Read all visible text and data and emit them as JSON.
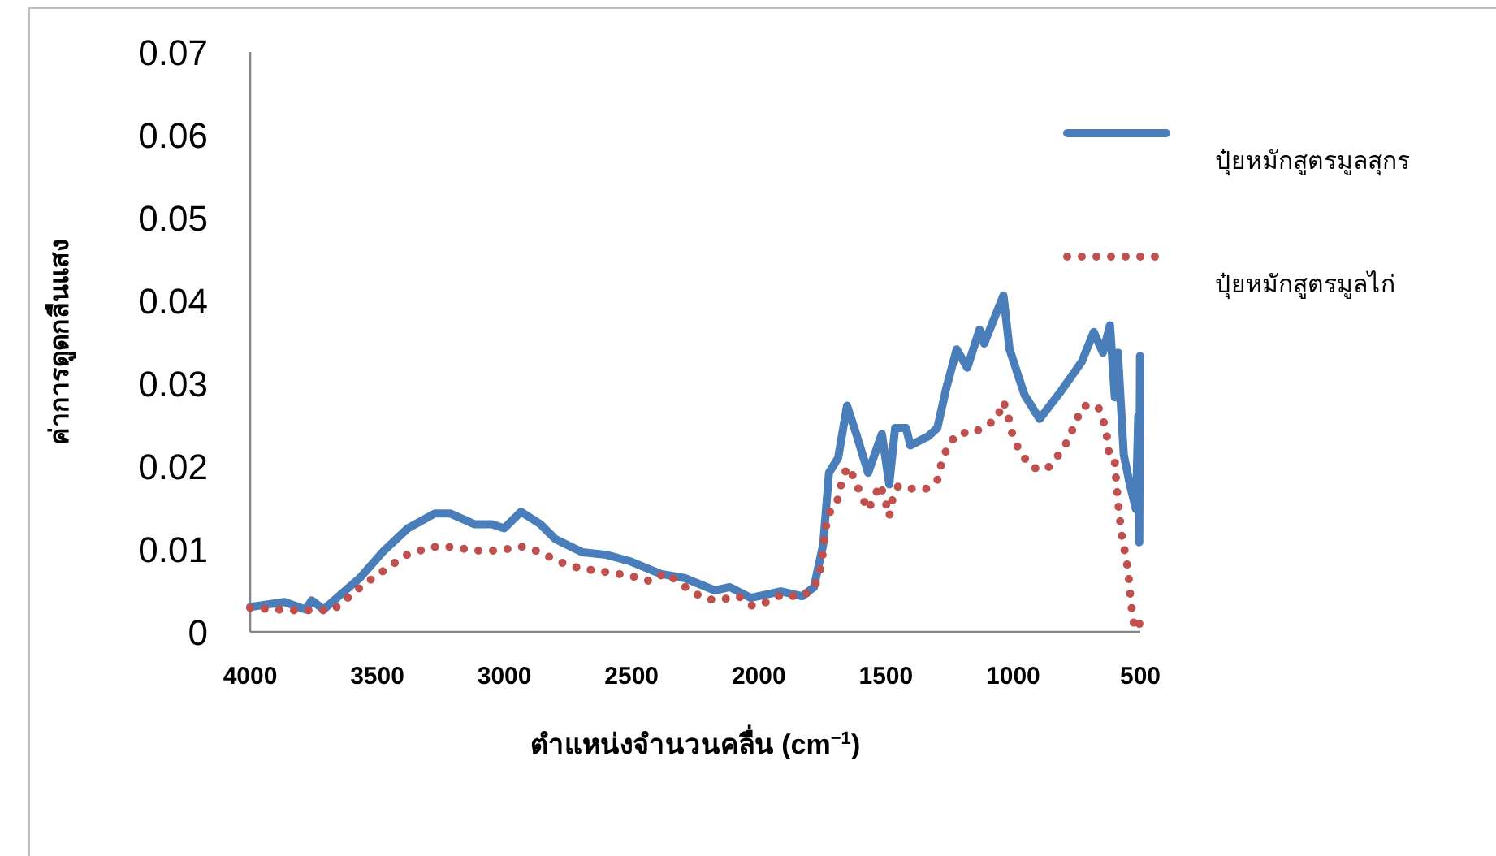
{
  "chart_data": {
    "type": "line",
    "xlabel": "ตำแหน่งจำนวนคลื่น (cm$^{−1}$)",
    "ylabel": "ค่าการดูดกลืนแสง",
    "xlim": [
      4000,
      500
    ],
    "ylim": [
      0,
      0.07
    ],
    "xticks": [
      4000,
      3500,
      3000,
      2500,
      2000,
      1500,
      1000,
      500
    ],
    "yticks": [
      0,
      0.01,
      0.02,
      0.03,
      0.04,
      0.05,
      0.06,
      0.07
    ],
    "legend": "right",
    "series": [
      {
        "name": "ปุ๋ยหมักสูตรมูลสุกร",
        "color": "#4a7ebb",
        "line_style": "solid",
        "x": [
          4000,
          3865,
          3782,
          3758,
          3711,
          3652,
          3569,
          3474,
          3380,
          3273,
          3214,
          3119,
          3049,
          3001,
          2935,
          2859,
          2800,
          2694,
          2599,
          2504,
          2386,
          2292,
          2173,
          2114,
          2031,
          1913,
          1830,
          1783,
          1747,
          1724,
          1688,
          1653,
          1617,
          1570,
          1516,
          1487,
          1464,
          1421,
          1404,
          1334,
          1298,
          1263,
          1222,
          1180,
          1132,
          1114,
          1038,
          1014,
          955,
          896,
          813,
          730,
          683,
          647,
          619,
          600,
          588,
          565,
          541,
          517,
          508,
          504,
          501
        ],
        "values": [
          0.003,
          0.0036,
          0.0027,
          0.0038,
          0.0027,
          0.0043,
          0.0065,
          0.0098,
          0.0125,
          0.0143,
          0.0143,
          0.013,
          0.013,
          0.0125,
          0.0145,
          0.013,
          0.0112,
          0.0096,
          0.0093,
          0.0085,
          0.007,
          0.0065,
          0.005,
          0.0054,
          0.0041,
          0.0049,
          0.0043,
          0.0054,
          0.0105,
          0.0192,
          0.021,
          0.0273,
          0.0239,
          0.0192,
          0.0239,
          0.0178,
          0.0246,
          0.0246,
          0.0225,
          0.0236,
          0.0246,
          0.0294,
          0.0341,
          0.0319,
          0.0365,
          0.0348,
          0.0406,
          0.0341,
          0.0286,
          0.0257,
          0.029,
          0.0326,
          0.0362,
          0.0337,
          0.037,
          0.0283,
          0.0337,
          0.0214,
          0.0178,
          0.0148,
          0.0261,
          0.0108,
          0.0333
        ]
      },
      {
        "name": "ปุ๋ยหมักสูตรมูลไก่",
        "color": "#c0504d",
        "line_style": "dotted",
        "x": [
          4000,
          3853,
          3735,
          3675,
          3628,
          3574,
          3517,
          3455,
          3392,
          3321,
          3254,
          3179,
          3108,
          3032,
          2966,
          2923,
          2859,
          2788,
          2717,
          2646,
          2571,
          2497,
          2426,
          2367,
          2315,
          2256,
          2197,
          2145,
          2079,
          2024,
          1968,
          1908,
          1835,
          1783,
          1759,
          1747,
          1740,
          1724,
          1693,
          1676,
          1653,
          1629,
          1599,
          1570,
          1546,
          1523,
          1506,
          1487,
          1475,
          1452,
          1412,
          1345,
          1298,
          1279,
          1251,
          1208,
          1161,
          1114,
          1066,
          1038,
          1019,
          1002,
          972,
          924,
          868,
          820,
          782,
          754,
          723,
          666,
          640,
          629,
          621,
          600,
          595,
          588,
          581,
          572,
          560,
          548,
          541,
          534,
          524,
          505,
          500
        ],
        "values": [
          0.0029,
          0.0026,
          0.0026,
          0.0026,
          0.0038,
          0.0052,
          0.0065,
          0.0078,
          0.0092,
          0.0099,
          0.0104,
          0.0101,
          0.0098,
          0.0098,
          0.0101,
          0.0103,
          0.0096,
          0.0085,
          0.0078,
          0.0074,
          0.0071,
          0.0067,
          0.0061,
          0.0071,
          0.006,
          0.0047,
          0.0039,
          0.0039,
          0.0043,
          0.0031,
          0.0036,
          0.0045,
          0.0042,
          0.0052,
          0.0074,
          0.0097,
          0.0121,
          0.0143,
          0.0156,
          0.0178,
          0.0199,
          0.0188,
          0.0166,
          0.0147,
          0.0163,
          0.0178,
          0.0162,
          0.0139,
          0.0159,
          0.0176,
          0.0173,
          0.0172,
          0.0183,
          0.0207,
          0.0228,
          0.0241,
          0.0239,
          0.0248,
          0.0256,
          0.0278,
          0.026,
          0.0237,
          0.0216,
          0.0198,
          0.0196,
          0.0214,
          0.0232,
          0.0254,
          0.0273,
          0.0272,
          0.025,
          0.0232,
          0.021,
          0.0205,
          0.0183,
          0.0159,
          0.0138,
          0.0114,
          0.0096,
          0.0074,
          0.005,
          0.0029,
          0.0007,
          0.0014,
          0
        ]
      }
    ]
  }
}
